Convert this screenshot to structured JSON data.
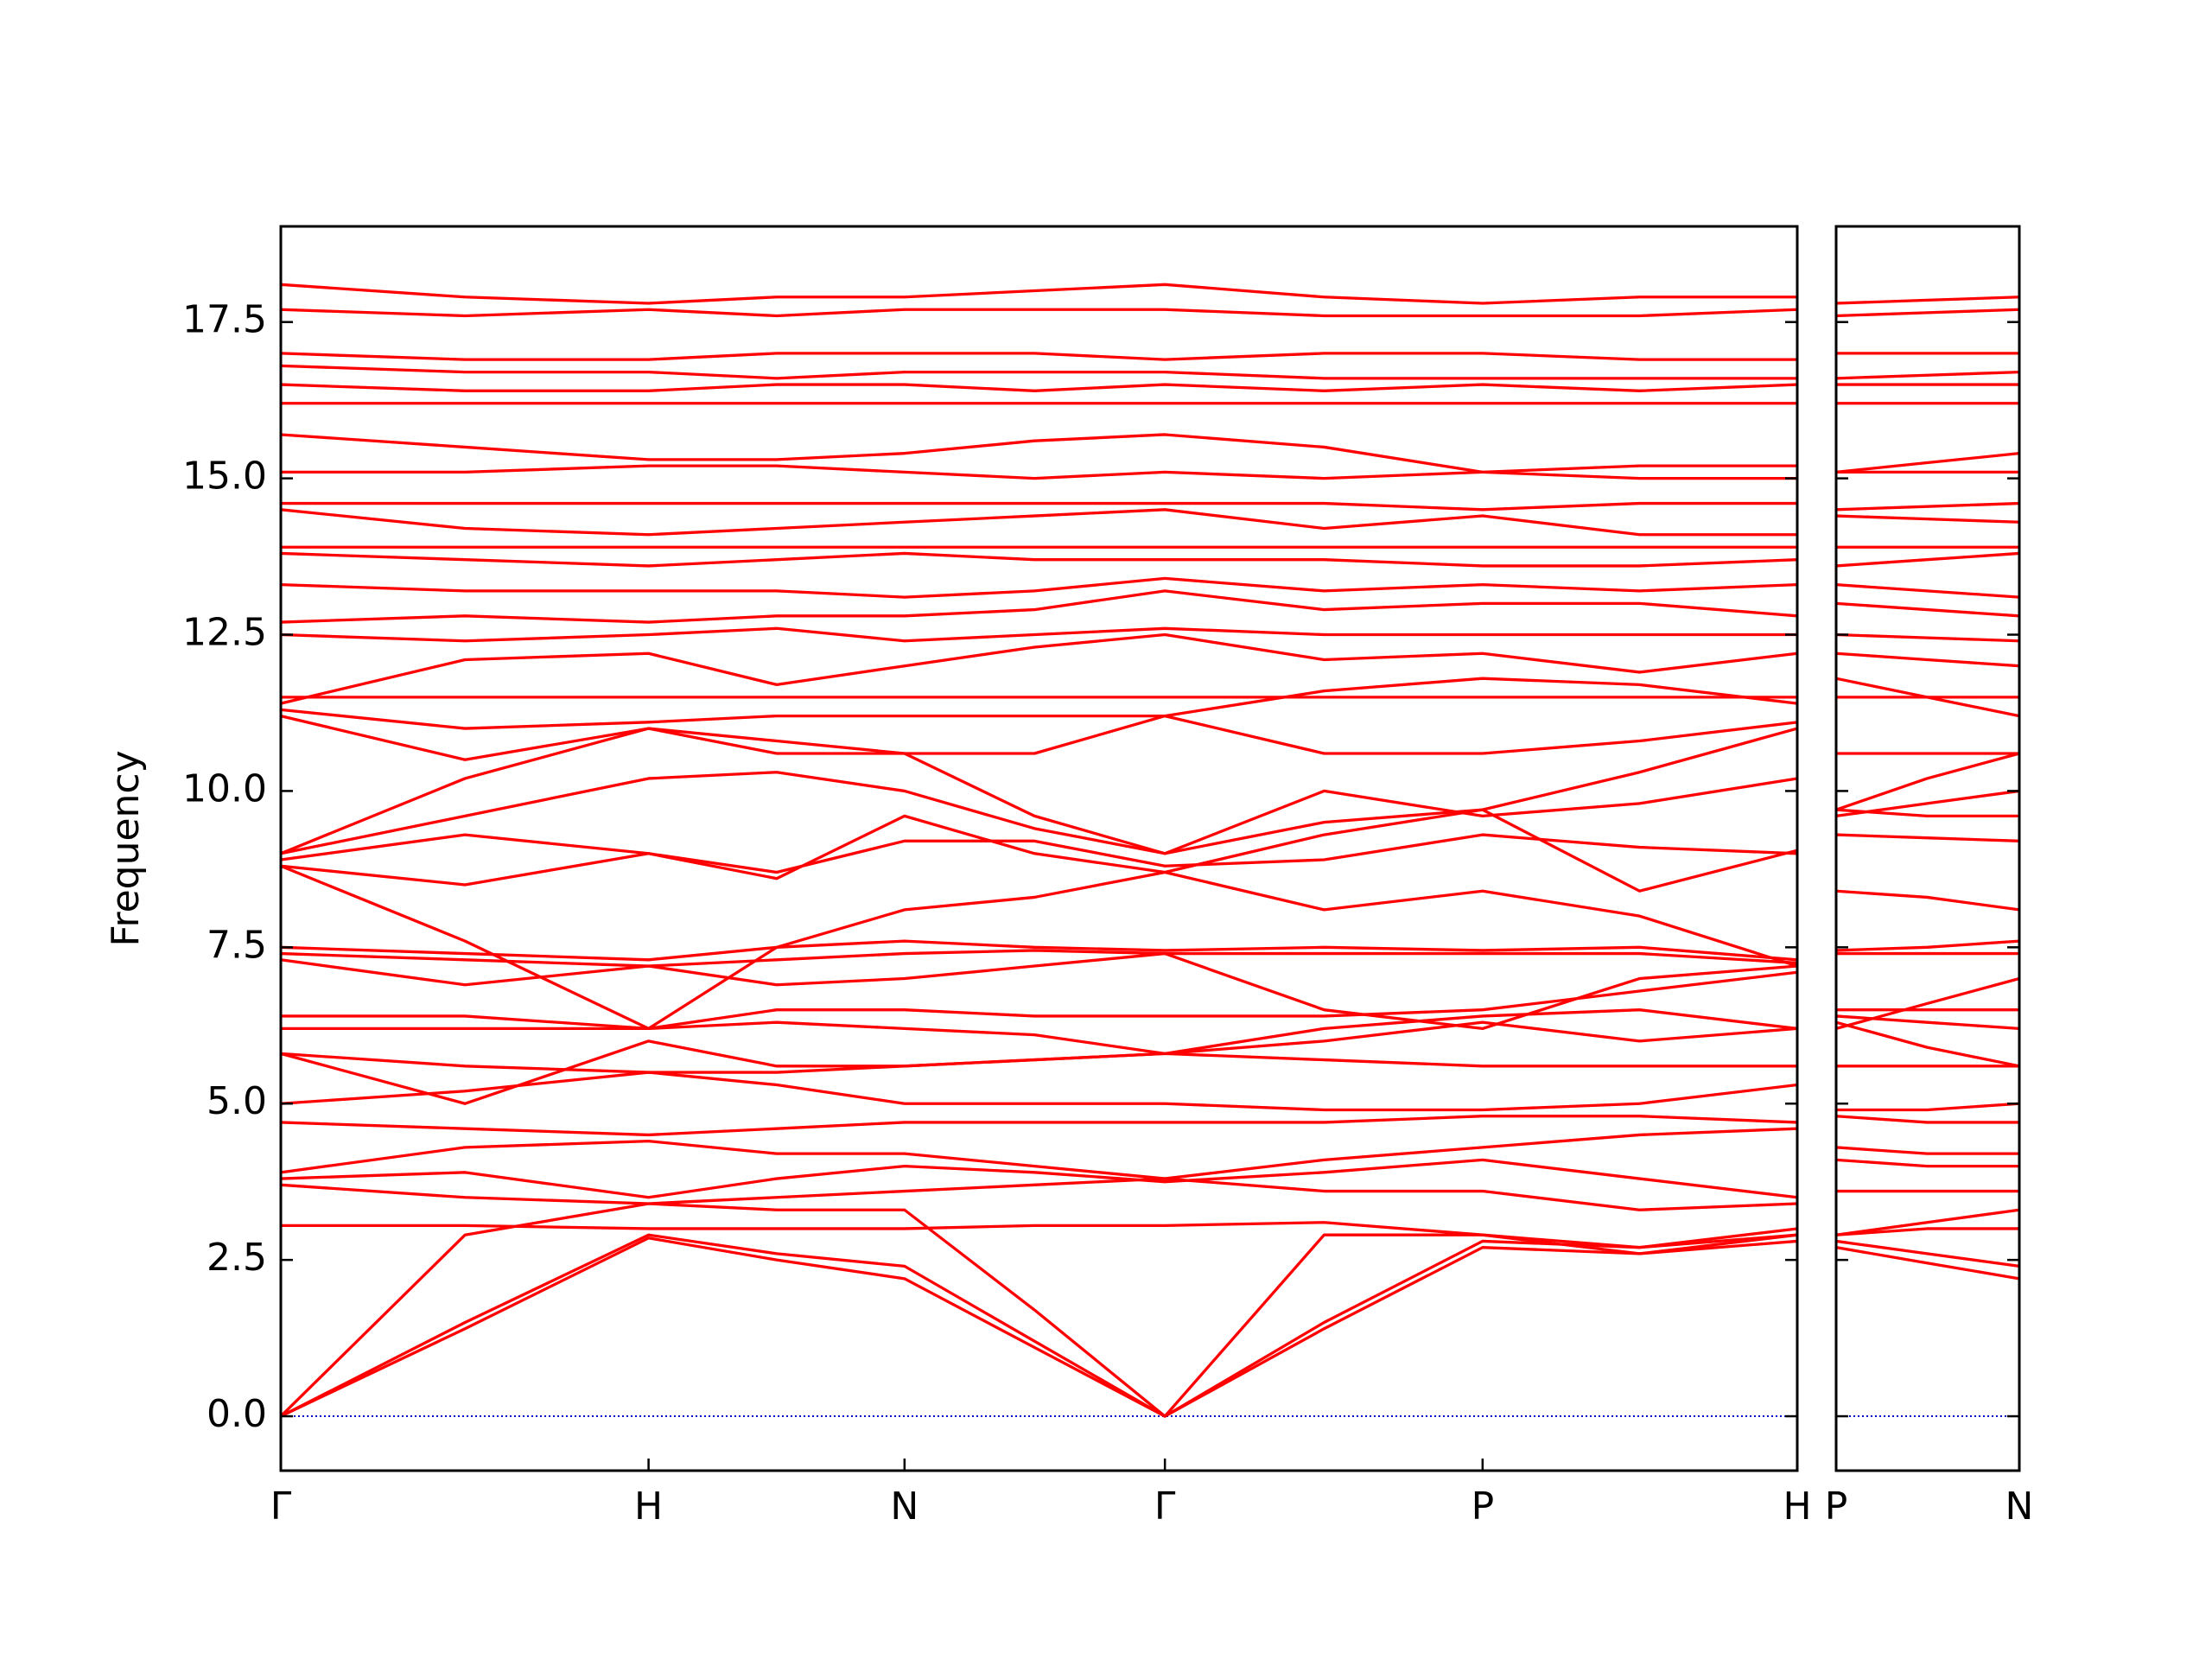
{
  "chart_data": [
    {
      "type": "line",
      "ylabel": "Frequency",
      "color": "#ff0000",
      "xlim": [
        0,
        1.0
      ],
      "ylim": [
        -0.87,
        19.03
      ],
      "xticks": [
        {
          "value": 0,
          "label": "Γ"
        },
        {
          "value": 0.2425,
          "label": "H"
        },
        {
          "value": 0.4113,
          "label": "N"
        },
        {
          "value": 0.583,
          "label": "Γ"
        },
        {
          "value": 0.7925,
          "label": "P"
        },
        {
          "value": 1.0,
          "label": "H"
        }
      ],
      "yticks": [
        {
          "value": 0,
          "label": "0.0"
        },
        2.5,
        {
          "value": 5,
          "label": "5.0"
        },
        7.5,
        {
          "value": 10,
          "label": "10.0"
        },
        12.5,
        {
          "value": 15,
          "label": "15.0"
        },
        17.5
      ],
      "hline": {
        "value": 0,
        "color": "#0000cc"
      },
      "x": [
        0,
        0.1215,
        0.2425,
        0.327,
        0.4113,
        0.497,
        0.583,
        0.688,
        0.7925,
        0.896,
        1.0
      ],
      "series": [
        {
          "values": [
            0,
            1.4,
            2.85,
            2.5,
            2.2,
            1.1,
            0,
            1.4,
            2.7,
            2.6,
            2.9
          ]
        },
        {
          "values": [
            0,
            1.5,
            2.9,
            2.6,
            2.4,
            1.2,
            0,
            1.5,
            2.8,
            2.7,
            3.0
          ]
        },
        {
          "values": [
            0,
            2.9,
            3.4,
            3.3,
            3.3,
            1.7,
            0,
            2.9,
            2.9,
            2.7,
            2.9
          ]
        },
        {
          "values": [
            3.05,
            3.05,
            3.0,
            3.0,
            3.0,
            3.05,
            3.05,
            3.1,
            2.9,
            2.6,
            2.8
          ]
        },
        {
          "values": [
            3.7,
            3.5,
            3.4,
            3.5,
            3.6,
            3.7,
            3.8,
            3.6,
            3.6,
            3.3,
            3.4
          ]
        },
        {
          "values": [
            3.8,
            3.9,
            3.5,
            3.8,
            4.0,
            3.9,
            3.75,
            3.9,
            4.1,
            3.8,
            3.5
          ]
        },
        {
          "values": [
            3.9,
            4.3,
            4.4,
            4.2,
            4.2,
            4.0,
            3.8,
            4.1,
            4.3,
            4.5,
            4.6
          ]
        },
        {
          "values": [
            4.7,
            4.6,
            4.5,
            4.6,
            4.7,
            4.7,
            4.7,
            4.7,
            4.8,
            4.8,
            4.7
          ]
        },
        {
          "values": [
            5.0,
            5.2,
            5.5,
            5.3,
            5.0,
            5.0,
            5.0,
            4.9,
            4.9,
            5.0,
            5.3
          ]
        },
        {
          "values": [
            5.8,
            5.6,
            5.5,
            5.5,
            5.6,
            5.7,
            5.8,
            5.7,
            5.6,
            5.6,
            5.6
          ]
        },
        {
          "values": [
            5.8,
            5.0,
            6.0,
            5.6,
            5.6,
            5.7,
            5.8,
            6.0,
            6.3,
            6.0,
            6.2
          ]
        },
        {
          "values": [
            6.2,
            6.2,
            6.2,
            6.3,
            6.2,
            6.1,
            5.8,
            6.2,
            6.4,
            6.5,
            6.2
          ]
        },
        {
          "values": [
            6.4,
            6.4,
            6.2,
            6.5,
            6.5,
            6.4,
            6.4,
            6.4,
            6.5,
            6.8,
            7.1
          ]
        },
        {
          "values": [
            7.3,
            6.9,
            7.2,
            6.9,
            7.0,
            7.2,
            7.4,
            6.5,
            6.2,
            7.0,
            7.2
          ]
        },
        {
          "values": [
            7.4,
            7.3,
            7.2,
            7.3,
            7.4,
            7.45,
            7.4,
            7.4,
            7.4,
            7.4,
            7.25
          ]
        },
        {
          "values": [
            7.5,
            7.4,
            7.3,
            7.5,
            7.6,
            7.5,
            7.45,
            7.5,
            7.45,
            7.5,
            7.3
          ]
        },
        {
          "values": [
            8.8,
            7.6,
            6.2,
            7.5,
            8.1,
            8.3,
            8.7,
            8.1,
            8.4,
            8.0,
            7.2
          ]
        },
        {
          "values": [
            8.8,
            8.5,
            9.0,
            8.7,
            9.2,
            9.2,
            8.8,
            8.9,
            9.3,
            9.1,
            9.0
          ]
        },
        {
          "values": [
            8.9,
            9.3,
            9.0,
            8.6,
            9.6,
            9.0,
            8.7,
            9.3,
            9.7,
            8.4,
            9.05
          ]
        },
        {
          "values": [
            9.0,
            9.6,
            10.2,
            10.3,
            10.0,
            9.4,
            9.0,
            10.0,
            9.6,
            9.8,
            10.2
          ]
        },
        {
          "values": [
            9.0,
            10.2,
            11.0,
            10.8,
            10.6,
            9.6,
            9.0,
            9.5,
            9.7,
            10.3,
            11.0
          ]
        },
        {
          "values": [
            11.2,
            10.5,
            11.0,
            10.6,
            10.6,
            10.6,
            11.2,
            10.6,
            10.6,
            10.8,
            11.1
          ]
        },
        {
          "values": [
            11.3,
            11.0,
            11.1,
            11.2,
            11.2,
            11.2,
            11.2,
            11.6,
            11.8,
            11.7,
            11.4
          ]
        },
        {
          "values": [
            11.5,
            11.5,
            11.5,
            11.5,
            11.5,
            11.5,
            11.5,
            11.5,
            11.5,
            11.5,
            11.5
          ]
        },
        {
          "values": [
            11.4,
            12.1,
            12.2,
            11.7,
            12.0,
            12.3,
            12.5,
            12.1,
            12.2,
            11.9,
            12.2
          ]
        },
        {
          "values": [
            12.5,
            12.4,
            12.5,
            12.6,
            12.4,
            12.5,
            12.6,
            12.5,
            12.5,
            12.5,
            12.5
          ]
        },
        {
          "values": [
            12.7,
            12.8,
            12.7,
            12.8,
            12.8,
            12.9,
            13.2,
            12.9,
            13.0,
            13.0,
            12.8
          ]
        },
        {
          "values": [
            13.3,
            13.2,
            13.2,
            13.2,
            13.1,
            13.2,
            13.4,
            13.2,
            13.3,
            13.2,
            13.3
          ]
        },
        {
          "values": [
            13.8,
            13.7,
            13.6,
            13.7,
            13.8,
            13.7,
            13.7,
            13.7,
            13.6,
            13.6,
            13.7
          ]
        },
        {
          "values": [
            13.9,
            13.9,
            13.9,
            13.9,
            13.9,
            13.9,
            13.9,
            13.9,
            13.9,
            13.9,
            13.9
          ]
        },
        {
          "values": [
            14.5,
            14.2,
            14.1,
            14.2,
            14.3,
            14.4,
            14.5,
            14.2,
            14.4,
            14.1,
            14.1
          ]
        },
        {
          "values": [
            14.6,
            14.6,
            14.6,
            14.6,
            14.6,
            14.6,
            14.6,
            14.6,
            14.5,
            14.6,
            14.6
          ]
        },
        {
          "values": [
            15.1,
            15.1,
            15.2,
            15.2,
            15.1,
            15.0,
            15.1,
            15.0,
            15.1,
            15.2,
            15.2
          ]
        },
        {
          "values": [
            15.7,
            15.5,
            15.3,
            15.3,
            15.4,
            15.6,
            15.7,
            15.5,
            15.1,
            15.0,
            15.0
          ]
        },
        {
          "values": [
            16.2,
            16.2,
            16.2,
            16.2,
            16.2,
            16.2,
            16.2,
            16.2,
            16.2,
            16.2,
            16.2
          ]
        },
        {
          "values": [
            16.5,
            16.4,
            16.4,
            16.5,
            16.5,
            16.4,
            16.5,
            16.4,
            16.5,
            16.4,
            16.5
          ]
        },
        {
          "values": [
            16.8,
            16.7,
            16.7,
            16.6,
            16.7,
            16.7,
            16.7,
            16.6,
            16.6,
            16.6,
            16.6
          ]
        },
        {
          "values": [
            17.0,
            16.9,
            16.9,
            17.0,
            17.0,
            17.0,
            16.9,
            17.0,
            17.0,
            16.9,
            16.9
          ]
        },
        {
          "values": [
            17.7,
            17.6,
            17.7,
            17.6,
            17.7,
            17.7,
            17.7,
            17.6,
            17.6,
            17.6,
            17.7
          ]
        },
        {
          "values": [
            18.1,
            17.9,
            17.8,
            17.9,
            17.9,
            18.0,
            18.1,
            17.9,
            17.8,
            17.9,
            17.9
          ]
        }
      ]
    },
    {
      "type": "line",
      "color": "#ff0000",
      "xlim": [
        0,
        0.1208
      ],
      "ylim": [
        -0.87,
        19.03
      ],
      "xticks": [
        {
          "value": 0,
          "label": "P"
        },
        {
          "value": 0.1208,
          "label": "N"
        }
      ],
      "yticks": [
        0,
        2.5,
        5,
        7.5,
        10,
        12.5,
        15,
        17.5
      ],
      "hline": {
        "value": 0,
        "color": "#0000cc"
      },
      "x": [
        0,
        0.06,
        0.1208
      ],
      "series": [
        {
          "values": [
            2.7,
            2.45,
            2.2
          ]
        },
        {
          "values": [
            2.8,
            2.6,
            2.4
          ]
        },
        {
          "values": [
            2.9,
            3.1,
            3.3
          ]
        },
        {
          "values": [
            2.9,
            3.0,
            3.0
          ]
        },
        {
          "values": [
            3.6,
            3.6,
            3.6
          ]
        },
        {
          "values": [
            4.1,
            4.0,
            4.0
          ]
        },
        {
          "values": [
            4.3,
            4.2,
            4.2
          ]
        },
        {
          "values": [
            4.8,
            4.7,
            4.7
          ]
        },
        {
          "values": [
            4.9,
            4.9,
            5.0
          ]
        },
        {
          "values": [
            5.6,
            5.6,
            5.6
          ]
        },
        {
          "values": [
            6.3,
            5.9,
            5.6
          ]
        },
        {
          "values": [
            6.4,
            6.3,
            6.2
          ]
        },
        {
          "values": [
            6.5,
            6.5,
            6.5
          ]
        },
        {
          "values": [
            6.2,
            6.6,
            7.0
          ]
        },
        {
          "values": [
            7.4,
            7.4,
            7.4
          ]
        },
        {
          "values": [
            7.45,
            7.5,
            7.6
          ]
        },
        {
          "values": [
            8.4,
            8.3,
            8.1
          ]
        },
        {
          "values": [
            9.3,
            9.25,
            9.2
          ]
        },
        {
          "values": [
            9.7,
            9.6,
            9.6
          ]
        },
        {
          "values": [
            9.6,
            9.8,
            10.0
          ]
        },
        {
          "values": [
            9.7,
            10.2,
            10.6
          ]
        },
        {
          "values": [
            10.6,
            10.6,
            10.6
          ]
        },
        {
          "values": [
            11.8,
            11.5,
            11.2
          ]
        },
        {
          "values": [
            11.5,
            11.5,
            11.5
          ]
        },
        {
          "values": [
            12.2,
            12.1,
            12.0
          ]
        },
        {
          "values": [
            12.5,
            12.45,
            12.4
          ]
        },
        {
          "values": [
            13.0,
            12.9,
            12.8
          ]
        },
        {
          "values": [
            13.3,
            13.2,
            13.1
          ]
        },
        {
          "values": [
            13.6,
            13.7,
            13.8
          ]
        },
        {
          "values": [
            13.9,
            13.9,
            13.9
          ]
        },
        {
          "values": [
            14.4,
            14.35,
            14.3
          ]
        },
        {
          "values": [
            14.5,
            14.55,
            14.6
          ]
        },
        {
          "values": [
            15.1,
            15.1,
            15.1
          ]
        },
        {
          "values": [
            15.1,
            15.25,
            15.4
          ]
        },
        {
          "values": [
            16.2,
            16.2,
            16.2
          ]
        },
        {
          "values": [
            16.5,
            16.5,
            16.5
          ]
        },
        {
          "values": [
            16.6,
            16.65,
            16.7
          ]
        },
        {
          "values": [
            17.0,
            17.0,
            17.0
          ]
        },
        {
          "values": [
            17.6,
            17.65,
            17.7
          ]
        },
        {
          "values": [
            17.8,
            17.85,
            17.9
          ]
        }
      ]
    }
  ]
}
